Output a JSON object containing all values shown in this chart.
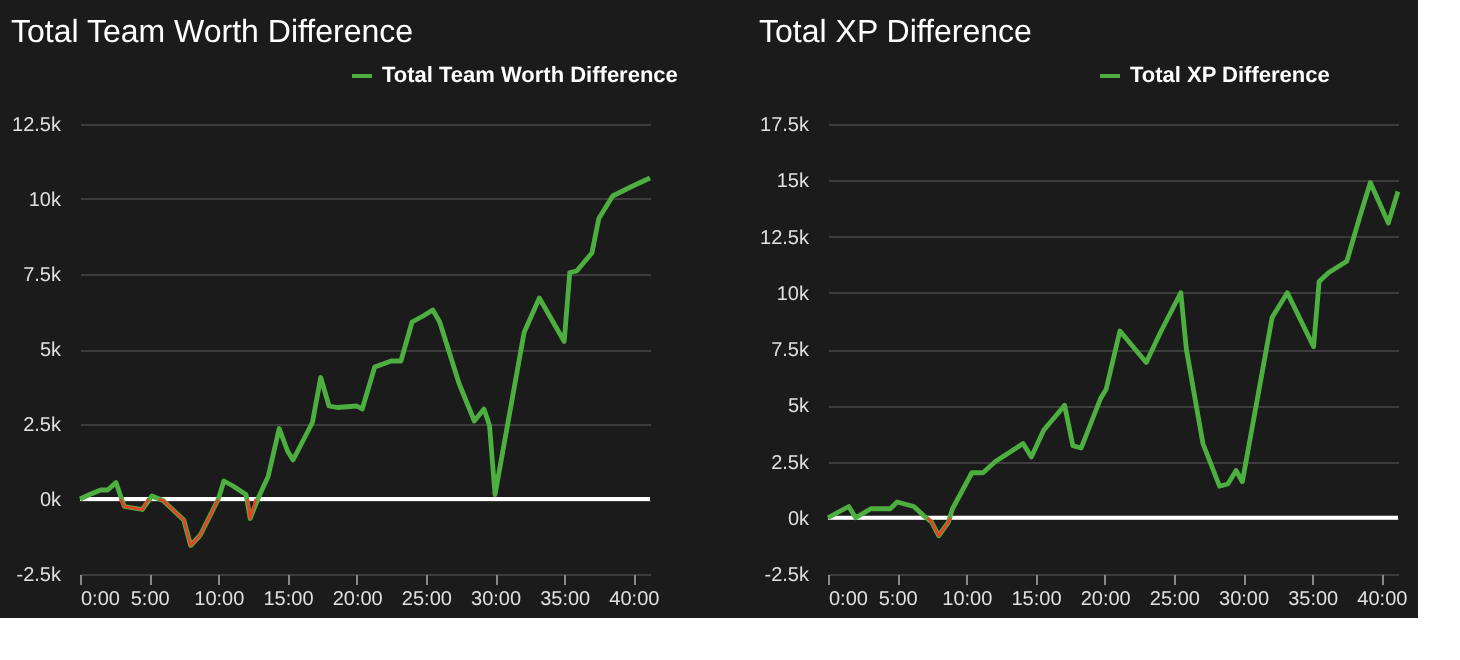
{
  "chart_data": [
    {
      "type": "line",
      "title": "Total Team Worth Difference",
      "legend": "top right",
      "grid": "y",
      "marker": "none",
      "line_style": "solid",
      "series": [
        {
          "name": "Total Team Worth Difference",
          "color": "#4caf3f",
          "x": [
            0,
            0.7,
            1.5,
            2,
            2.6,
            3.2,
            4.5,
            5.2,
            6,
            7.5,
            8,
            8.7,
            10,
            10.4,
            11,
            12,
            12.3,
            12.9,
            13.6,
            14.4,
            15,
            15.4,
            16.8,
            17.4,
            18,
            18.6,
            20,
            20.4,
            21.3,
            22.5,
            23.2,
            24,
            24.8,
            25.5,
            26,
            27.4,
            28.5,
            29.2,
            29.6,
            30,
            32.1,
            33.2,
            35,
            35.4,
            35.9,
            37,
            37.5,
            38.5,
            39.8,
            41.2
          ],
          "values": [
            0,
            150,
            300,
            300,
            550,
            -250,
            -350,
            100,
            -50,
            -700,
            -1550,
            -1200,
            0,
            600,
            450,
            150,
            -650,
            50,
            750,
            2350,
            1600,
            1300,
            2550,
            4050,
            3100,
            3050,
            3100,
            3000,
            4400,
            4600,
            4600,
            5900,
            6100,
            6300,
            5900,
            3850,
            2600,
            3000,
            2450,
            150,
            5550,
            6700,
            5250,
            7550,
            7600,
            8200,
            9350,
            10100,
            10400,
            10700
          ]
        },
        {
          "color": "#f03c28",
          "x": [
            2.9,
            3.2,
            4.5,
            4.95,
            5.3,
            5.7,
            6,
            7.5,
            8,
            8.7,
            10,
            11,
            12.1,
            12.3,
            12.7
          ],
          "values": [
            0,
            -250,
            -350,
            0,
            null,
            0,
            -50,
            -700,
            -1550,
            -1200,
            0,
            null,
            0,
            -650,
            0
          ]
        }
      ],
      "xlim": [
        0,
        41.2
      ],
      "xticks": [
        {
          "value": 0,
          "label": "0:00"
        },
        {
          "value": 5,
          "label": "5:00"
        },
        {
          "value": 10,
          "label": "10:00"
        },
        {
          "value": 15,
          "label": "15:00"
        },
        {
          "value": 20,
          "label": "20:00"
        },
        {
          "value": 25,
          "label": "25:00"
        },
        {
          "value": 30,
          "label": "30:00"
        },
        {
          "value": 35,
          "label": "35:00"
        },
        {
          "value": 40,
          "label": "40:00"
        }
      ],
      "ylim": [
        -2500,
        12500
      ],
      "yticks": [
        {
          "value": -2500,
          "label": "-2.5k"
        },
        {
          "value": 0,
          "label": "0k"
        },
        {
          "value": 2500,
          "label": "2.5k"
        },
        {
          "value": 5000,
          "label": "5k"
        },
        {
          "value": 7500,
          "label": "7.5k"
        },
        {
          "value": 10000,
          "label": "10k"
        },
        {
          "value": 12500,
          "label": "12.5k"
        }
      ],
      "ref_lines": [
        {
          "axis": "y",
          "value": 0,
          "color": "#ffffff"
        }
      ]
    },
    {
      "type": "line",
      "title": "Total XP Difference",
      "legend": "top right",
      "grid": "y",
      "marker": "none",
      "line_style": "solid",
      "series": [
        {
          "name": "Total XP Difference",
          "color": "#4caf3f",
          "x": [
            0,
            1.5,
            2,
            3.1,
            4.5,
            5,
            6.2,
            6.9,
            7.5,
            8,
            8.7,
            9,
            10.4,
            11.2,
            12.1,
            14.1,
            14.7,
            15.6,
            16.7,
            17.1,
            17.7,
            18.3,
            19.7,
            20.1,
            21.1,
            23,
            24,
            25.5,
            25.9,
            27.1,
            28.3,
            28.9,
            29.5,
            29.95,
            32.1,
            33.2,
            35.1,
            35.5,
            36.2,
            37.5,
            38.4,
            39.2,
            40.5,
            41.2
          ],
          "values": [
            0,
            500,
            0,
            400,
            400,
            700,
            500,
            100,
            -200,
            -800,
            -200,
            400,
            2000,
            2000,
            2500,
            3300,
            2700,
            3900,
            4700,
            5000,
            3200,
            3100,
            5300,
            5700,
            8300,
            6900,
            8200,
            10000,
            7500,
            3300,
            1400,
            1500,
            2100,
            1600,
            8900,
            10000,
            7600,
            10500,
            10900,
            11400,
            13300,
            14900,
            13100,
            14500
          ]
        },
        {
          "color": "#f03c28",
          "x": [
            7.2,
            7.5,
            8,
            8.7,
            8.85
          ],
          "values": [
            0,
            -200,
            -800,
            -200,
            0
          ]
        }
      ],
      "xlim": [
        0,
        41.2
      ],
      "xticks": [
        {
          "value": 0,
          "label": "0:00"
        },
        {
          "value": 5,
          "label": "5:00"
        },
        {
          "value": 10,
          "label": "10:00"
        },
        {
          "value": 15,
          "label": "15:00"
        },
        {
          "value": 20,
          "label": "20:00"
        },
        {
          "value": 25,
          "label": "25:00"
        },
        {
          "value": 30,
          "label": "30:00"
        },
        {
          "value": 35,
          "label": "35:00"
        },
        {
          "value": 40,
          "label": "40:00"
        }
      ],
      "ylim": [
        -2500,
        17500
      ],
      "yticks": [
        {
          "value": -2500,
          "label": "-2.5k"
        },
        {
          "value": 0,
          "label": "0k"
        },
        {
          "value": 2500,
          "label": "2.5k"
        },
        {
          "value": 5000,
          "label": "5k"
        },
        {
          "value": 7500,
          "label": "7.5k"
        },
        {
          "value": 10000,
          "label": "10k"
        },
        {
          "value": 12500,
          "label": "12.5k"
        },
        {
          "value": 15000,
          "label": "15k"
        },
        {
          "value": 17500,
          "label": "17.5k"
        }
      ],
      "ref_lines": [
        {
          "axis": "y",
          "value": 0,
          "color": "#ffffff"
        }
      ]
    }
  ]
}
